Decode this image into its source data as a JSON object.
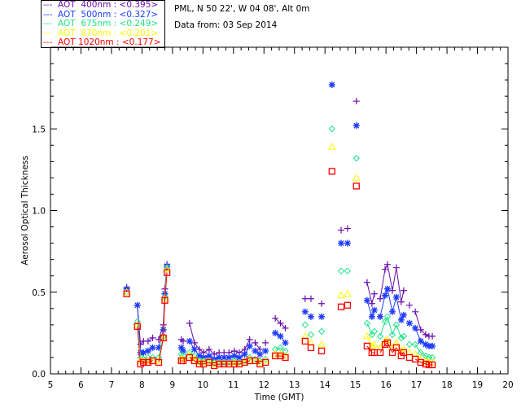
{
  "header": {
    "site": "PML, N 50 22', W 04 08', Alt 0m",
    "date": "Data from: 03 Sep 2014"
  },
  "chart_data": {
    "type": "scatter",
    "title": "",
    "xlabel": "Time (GMT)",
    "ylabel": "Aerosol Optical Thickness",
    "xlim": [
      5,
      20
    ],
    "ylim": [
      0,
      2.0
    ],
    "xticks": [
      "5",
      "6",
      "7",
      "8",
      "9",
      "10",
      "11",
      "12",
      "13",
      "14",
      "15",
      "16",
      "17",
      "18",
      "19",
      "20"
    ],
    "yticks": [
      "0.0",
      "0.5",
      "1.0",
      "1.5"
    ],
    "legend_position": "top-left",
    "x": [
      7.5,
      7.85,
      7.95,
      8.05,
      8.2,
      8.35,
      8.55,
      8.7,
      8.75,
      8.82,
      9.29,
      9.35,
      9.56,
      9.72,
      9.88,
      10.02,
      10.2,
      10.37,
      10.53,
      10.69,
      10.85,
      11.03,
      11.19,
      11.37,
      11.53,
      11.71,
      11.87,
      12.05,
      12.37,
      12.54,
      12.7,
      13.35,
      13.54,
      13.89,
      14.23,
      14.53,
      14.74,
      15.03,
      15.38,
      15.54,
      15.62,
      15.81,
      15.97,
      16.05,
      16.21,
      16.34,
      16.5,
      16.58,
      16.77,
      16.96,
      17.14,
      17.3,
      17.41,
      17.52
    ],
    "series": [
      {
        "name": "AOT  400nm",
        "legend": "---  AOT  400nm : <0.395>",
        "mean": "0.395",
        "color": "#6a0dad",
        "marker": "plus",
        "values": [
          0.53,
          0.42,
          0.18,
          0.2,
          0.2,
          0.22,
          0.21,
          0.3,
          0.52,
          0.67,
          0.21,
          0.2,
          0.31,
          0.19,
          0.15,
          0.13,
          0.15,
          0.12,
          0.13,
          0.13,
          0.13,
          0.14,
          0.13,
          0.15,
          0.21,
          0.19,
          0.15,
          0.19,
          0.34,
          0.31,
          0.28,
          0.46,
          0.46,
          0.43,
          null,
          0.88,
          0.89,
          1.67,
          0.56,
          0.43,
          0.49,
          0.46,
          0.64,
          0.67,
          0.51,
          0.65,
          0.44,
          0.51,
          0.42,
          0.38,
          0.27,
          0.24,
          0.23,
          0.23
        ]
      },
      {
        "name": "AOT  500nm",
        "legend": "---  AOT  500nm : <0.327>",
        "mean": "0.327",
        "color": "#1f3cff",
        "marker": "asterisk",
        "values": [
          0.52,
          0.42,
          0.13,
          0.13,
          0.14,
          0.16,
          0.16,
          0.27,
          0.49,
          0.66,
          0.16,
          0.14,
          0.2,
          0.15,
          0.11,
          0.1,
          0.11,
          0.09,
          0.1,
          0.1,
          0.1,
          0.11,
          0.1,
          0.12,
          0.17,
          0.14,
          0.12,
          0.14,
          0.25,
          0.23,
          0.19,
          0.38,
          0.35,
          0.35,
          1.77,
          0.8,
          0.8,
          1.52,
          0.45,
          0.35,
          0.39,
          0.35,
          0.48,
          0.52,
          0.38,
          0.47,
          0.33,
          0.36,
          0.31,
          0.28,
          0.2,
          0.18,
          0.17,
          0.17
        ]
      },
      {
        "name": "AOT  675nm",
        "legend": "---  AOT  675nm : <0.249>",
        "mean": "0.249",
        "color": "#22e08c",
        "marker": "diamond",
        "values": [
          0.5,
          0.32,
          0.1,
          0.09,
          0.1,
          0.1,
          0.1,
          0.23,
          0.47,
          0.65,
          0.12,
          0.11,
          0.13,
          0.11,
          0.08,
          0.08,
          0.08,
          0.07,
          0.07,
          0.07,
          0.07,
          0.08,
          0.07,
          0.08,
          0.1,
          0.09,
          0.08,
          0.09,
          0.15,
          0.16,
          0.14,
          0.3,
          0.24,
          0.26,
          1.5,
          0.63,
          0.63,
          1.32,
          0.31,
          0.24,
          0.26,
          0.23,
          0.32,
          0.35,
          0.24,
          0.3,
          0.22,
          0.23,
          0.18,
          0.18,
          0.13,
          0.11,
          0.1,
          0.1
        ]
      },
      {
        "name": "AOT  870nm",
        "legend": "---  AOT  870nm : <0.201>",
        "mean": "0.201",
        "color": "#ffff00",
        "marker": "triangle",
        "values": [
          0.5,
          0.3,
          0.08,
          0.08,
          0.08,
          0.08,
          0.08,
          0.22,
          0.46,
          0.64,
          0.09,
          0.09,
          0.11,
          0.09,
          0.07,
          0.07,
          0.07,
          0.06,
          0.06,
          0.06,
          0.06,
          0.07,
          0.06,
          0.07,
          0.09,
          0.08,
          0.07,
          0.08,
          0.12,
          0.12,
          0.11,
          0.23,
          0.19,
          0.18,
          1.39,
          0.48,
          0.49,
          1.2,
          0.23,
          0.17,
          0.18,
          0.16,
          0.2,
          0.21,
          0.16,
          0.19,
          0.14,
          0.15,
          0.13,
          0.12,
          0.09,
          0.08,
          0.07,
          0.07
        ]
      },
      {
        "name": "AOT 1020nm",
        "legend": "---  AOT 1020nm : <0.177>",
        "mean": "0.177",
        "color": "#ff0000",
        "marker": "square",
        "values": [
          0.49,
          0.29,
          0.06,
          0.07,
          0.07,
          0.08,
          0.07,
          0.22,
          0.45,
          0.62,
          0.08,
          0.08,
          0.1,
          0.08,
          0.06,
          0.06,
          0.07,
          0.05,
          0.06,
          0.06,
          0.06,
          0.06,
          0.06,
          0.07,
          0.08,
          0.08,
          0.06,
          0.07,
          0.11,
          0.11,
          0.1,
          0.2,
          0.16,
          0.14,
          1.24,
          0.41,
          0.42,
          1.15,
          0.17,
          0.13,
          0.13,
          0.13,
          0.18,
          0.19,
          0.13,
          0.16,
          0.11,
          0.13,
          0.1,
          0.09,
          0.07,
          0.06,
          0.055,
          0.055
        ]
      }
    ]
  }
}
